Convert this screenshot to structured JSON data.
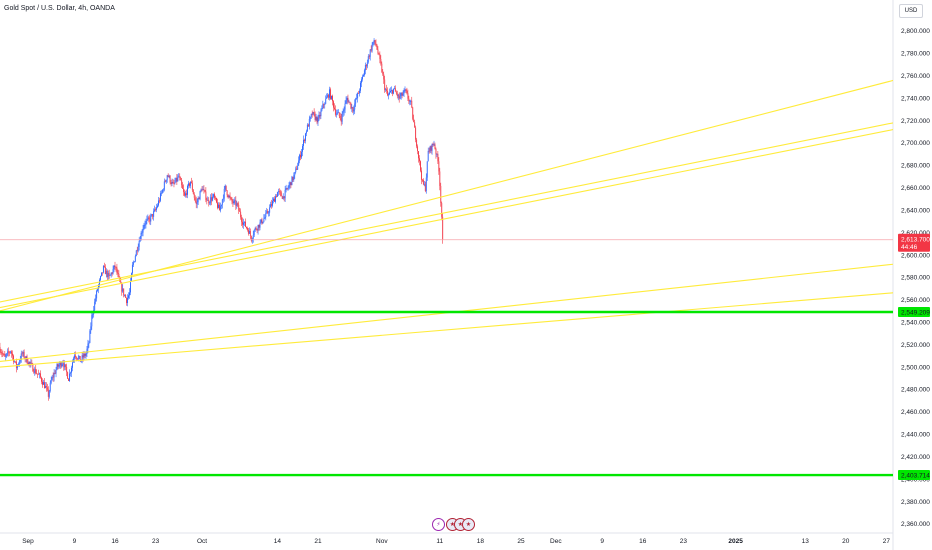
{
  "header": {
    "title": "Gold Spot / U.S. Dollar, 4h, OANDA",
    "currency": "USD"
  },
  "events": {
    "icons": [
      "lightning-icon",
      "us-flag-icon",
      "us-flag-icon",
      "us-flag-icon"
    ]
  },
  "colors": {
    "up": "#2962ff",
    "down": "#f23645",
    "trendline": "#ffeb3b",
    "support": "#00e600",
    "current_price_line": "#f7a5ab"
  },
  "chart_data": {
    "type": "candlestick",
    "symbol": "Gold Spot / U.S. Dollar",
    "interval": "4h",
    "source": "OANDA",
    "ylim": [
      2350,
      2810
    ],
    "y_ticks": [
      2360,
      2380,
      2400,
      2420,
      2440,
      2460,
      2480,
      2500,
      2520,
      2540,
      2560,
      2580,
      2600,
      2620,
      2640,
      2660,
      2680,
      2700,
      2720,
      2740,
      2760,
      2780,
      2800
    ],
    "x_ticks": [
      {
        "label": "Sep",
        "day": 0,
        "bold": false
      },
      {
        "label": "9",
        "day": 8,
        "bold": false
      },
      {
        "label": "16",
        "day": 15,
        "bold": false
      },
      {
        "label": "23",
        "day": 22,
        "bold": false
      },
      {
        "label": "Oct",
        "day": 30,
        "bold": false
      },
      {
        "label": "14",
        "day": 43,
        "bold": false
      },
      {
        "label": "21",
        "day": 50,
        "bold": false
      },
      {
        "label": "Nov",
        "day": 61,
        "bold": false
      },
      {
        "label": "11",
        "day": 71,
        "bold": false
      },
      {
        "label": "18",
        "day": 78,
        "bold": false
      },
      {
        "label": "25",
        "day": 85,
        "bold": false
      },
      {
        "label": "Dec",
        "day": 91,
        "bold": false
      },
      {
        "label": "9",
        "day": 99,
        "bold": false
      },
      {
        "label": "16",
        "day": 106,
        "bold": false
      },
      {
        "label": "23",
        "day": 113,
        "bold": false
      },
      {
        "label": "2025",
        "day": 122,
        "bold": true
      },
      {
        "label": "13",
        "day": 134,
        "bold": false
      },
      {
        "label": "20",
        "day": 141,
        "bold": false
      },
      {
        "label": "27",
        "day": 148,
        "bold": false
      }
    ],
    "price_path": [
      [
        -5,
        2518
      ],
      [
        -4,
        2508
      ],
      [
        -3,
        2515
      ],
      [
        -2,
        2500
      ],
      [
        -1,
        2512
      ],
      [
        0,
        2505
      ],
      [
        1,
        2498
      ],
      [
        2,
        2492
      ],
      [
        3,
        2482
      ],
      [
        3.5,
        2475
      ],
      [
        4,
        2488
      ],
      [
        5,
        2500
      ],
      [
        6,
        2505
      ],
      [
        7,
        2490
      ],
      [
        8,
        2512
      ],
      [
        9,
        2506
      ],
      [
        10,
        2512
      ],
      [
        10.5,
        2522
      ],
      [
        11,
        2545
      ],
      [
        12,
        2570
      ],
      [
        13,
        2588
      ],
      [
        14,
        2580
      ],
      [
        15,
        2590
      ],
      [
        16,
        2572
      ],
      [
        17,
        2560
      ],
      [
        17.5,
        2566
      ],
      [
        18,
        2590
      ],
      [
        19,
        2610
      ],
      [
        20,
        2628
      ],
      [
        21,
        2632
      ],
      [
        22,
        2640
      ],
      [
        23,
        2655
      ],
      [
        24,
        2672
      ],
      [
        25,
        2662
      ],
      [
        26,
        2670
      ],
      [
        27,
        2652
      ],
      [
        28,
        2666
      ],
      [
        29,
        2645
      ],
      [
        30,
        2660
      ],
      [
        31,
        2648
      ],
      [
        32,
        2652
      ],
      [
        33,
        2640
      ],
      [
        34,
        2660
      ],
      [
        35,
        2648
      ],
      [
        36,
        2645
      ],
      [
        37,
        2630
      ],
      [
        38,
        2622
      ],
      [
        38.5,
        2615
      ],
      [
        39,
        2622
      ],
      [
        40,
        2628
      ],
      [
        41,
        2635
      ],
      [
        42,
        2645
      ],
      [
        43,
        2656
      ],
      [
        44,
        2652
      ],
      [
        45,
        2662
      ],
      [
        46,
        2672
      ],
      [
        47,
        2690
      ],
      [
        48,
        2712
      ],
      [
        49,
        2726
      ],
      [
        50,
        2720
      ],
      [
        51,
        2735
      ],
      [
        52,
        2745
      ],
      [
        53,
        2728
      ],
      [
        54,
        2722
      ],
      [
        55,
        2740
      ],
      [
        56,
        2730
      ],
      [
        57,
        2745
      ],
      [
        58,
        2765
      ],
      [
        59,
        2782
      ],
      [
        59.5,
        2790
      ],
      [
        60,
        2788
      ],
      [
        61,
        2765
      ],
      [
        61.5,
        2750
      ],
      [
        62,
        2742
      ],
      [
        63,
        2748
      ],
      [
        64,
        2740
      ],
      [
        65,
        2746
      ],
      [
        66,
        2735
      ],
      [
        67,
        2700
      ],
      [
        68,
        2664
      ],
      [
        68.5,
        2660
      ],
      [
        69,
        2692
      ],
      [
        70,
        2700
      ],
      [
        70.8,
        2680
      ],
      [
        71.6,
        2612
      ]
    ],
    "last_price": {
      "label": "2,613.700",
      "countdown": "44:46",
      "value": 2613.7
    },
    "horizontal_levels": [
      {
        "value": 2549.209,
        "label": "2,549.209"
      },
      {
        "value": 2403.714,
        "label": "2,403.714"
      }
    ],
    "trendlines": [
      {
        "from": [
          -5,
          2550
        ],
        "to": [
          153,
          2761
        ]
      },
      {
        "from": [
          -5,
          2558
        ],
        "to": [
          153,
          2722
        ]
      },
      {
        "from": [
          -5,
          2553
        ],
        "to": [
          153,
          2716
        ]
      },
      {
        "from": [
          -5,
          2505
        ],
        "to": [
          153,
          2594
        ]
      },
      {
        "from": [
          -5,
          2500
        ],
        "to": [
          153,
          2568
        ]
      }
    ]
  }
}
